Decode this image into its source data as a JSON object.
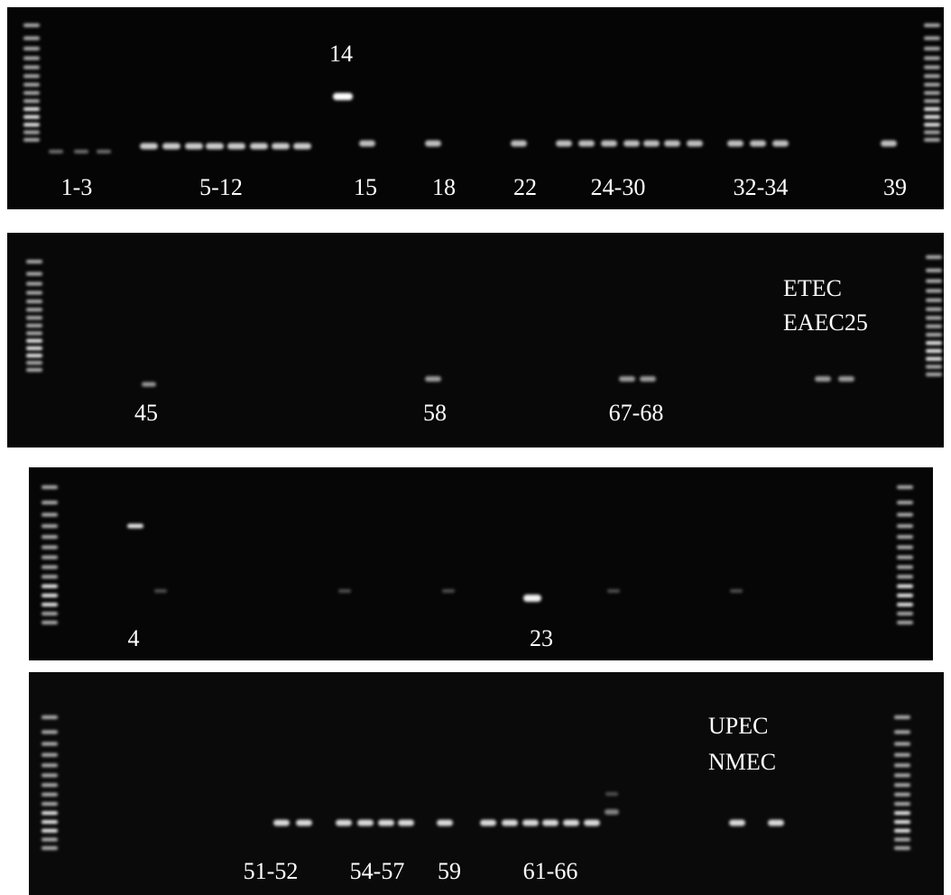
{
  "panels": [
    {
      "labels": [
        "14",
        "1-3",
        "5-12",
        "15",
        "18",
        "22",
        "24-30",
        "32-34",
        "39"
      ]
    },
    {
      "labels": [
        "ETEC",
        "EAEC25",
        "45",
        "58",
        "67-68"
      ]
    },
    {
      "labels": [
        "4",
        "23"
      ]
    },
    {
      "labels": [
        "UPEC",
        "NMEC",
        "51-52",
        "54-57",
        "59",
        "61-66"
      ]
    }
  ]
}
